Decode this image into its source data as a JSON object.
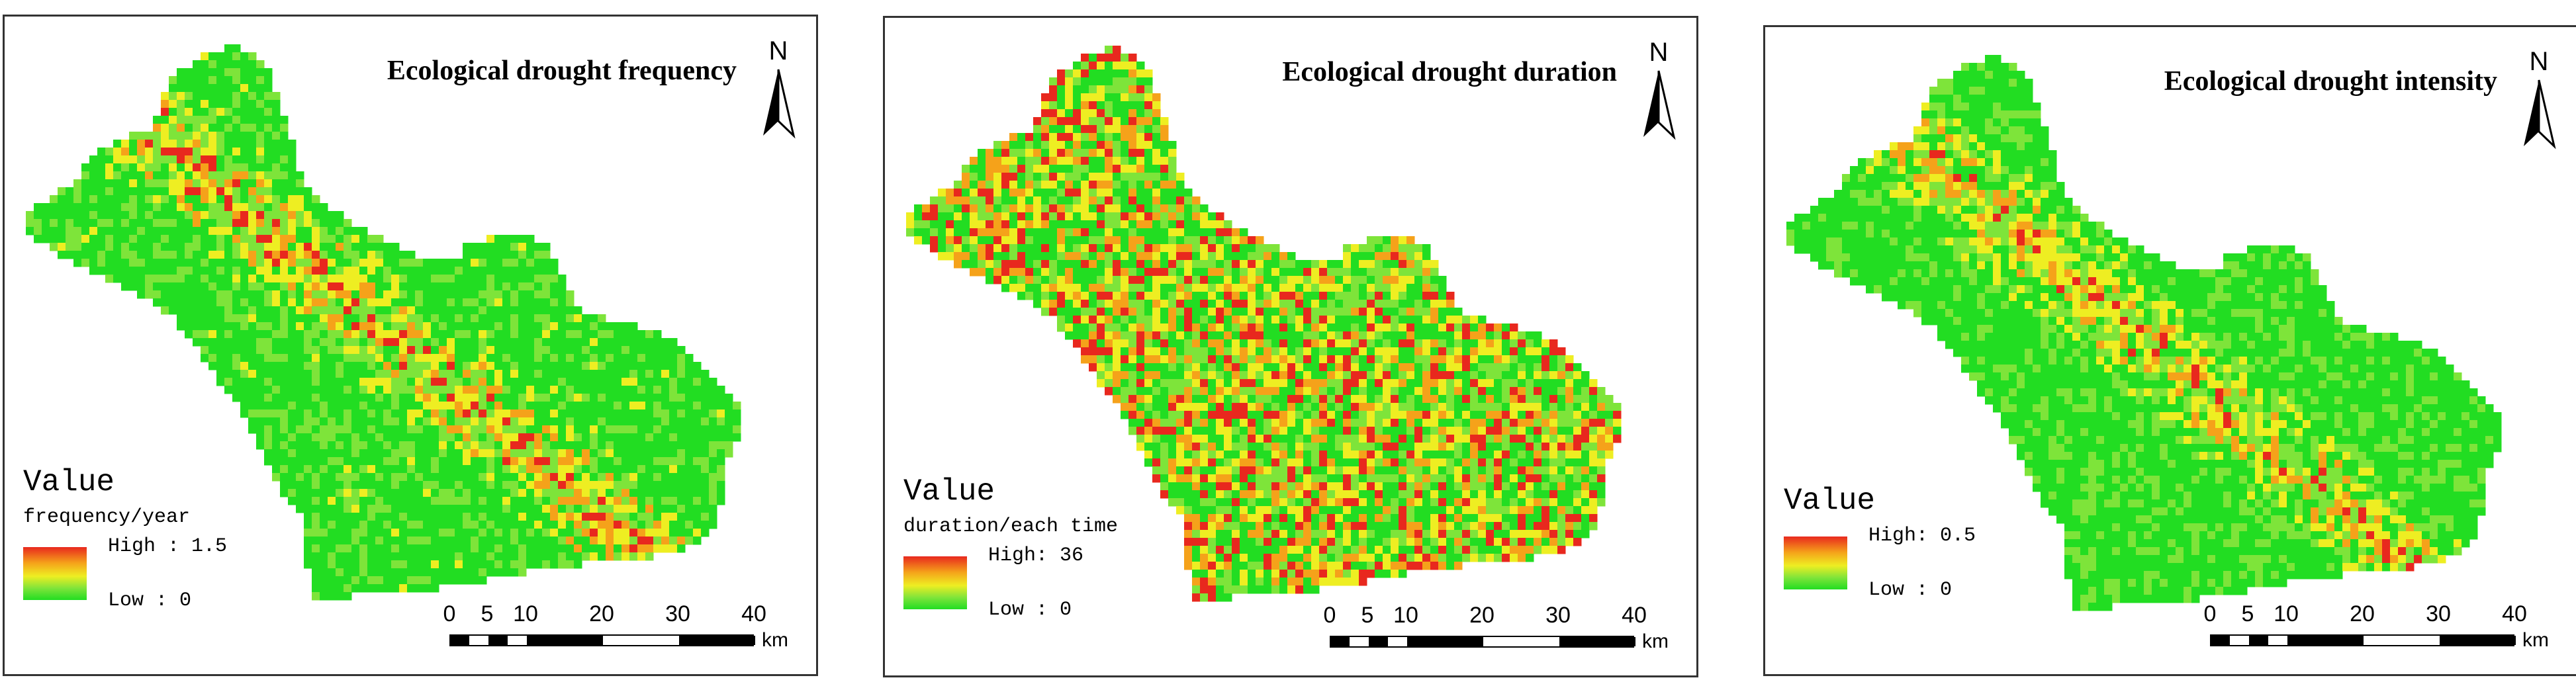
{
  "panels": [
    {
      "id": "frequency",
      "title": "Ecological drought frequency",
      "north_label": "N",
      "legend": {
        "title": "Value",
        "unit": "frequency/year",
        "high_label": "High : 1.5",
        "low_label": "Low : 0"
      },
      "scale": {
        "ticks": [
          "0",
          "5",
          "10",
          "20",
          "30",
          "40"
        ],
        "unit": "km"
      },
      "hotness": 0.3
    },
    {
      "id": "duration",
      "title": "Ecological drought duration",
      "north_label": "N",
      "legend": {
        "title": "Value",
        "unit": "duration/each time",
        "high_label": "High: 36",
        "low_label": "Low : 0"
      },
      "scale": {
        "ticks": [
          "0",
          "5",
          "10",
          "20",
          "30",
          "40"
        ],
        "unit": "km"
      },
      "hotness": 0.55
    },
    {
      "id": "intensity",
      "title": "Ecological drought intensity",
      "north_label": "N",
      "legend": {
        "title": "Value",
        "unit": "",
        "high_label": "High: 0.5",
        "low_label": "Low : 0"
      },
      "scale": {
        "ticks": [
          "0",
          "5",
          "10",
          "20",
          "30",
          "40"
        ],
        "unit": "km"
      },
      "hotness": 0.25
    }
  ],
  "colors": {
    "high": "#e8281e",
    "mid_high": "#f5a21a",
    "mid": "#eeee22",
    "mid_low": "#7ee43a",
    "low": "#22dd22"
  }
}
